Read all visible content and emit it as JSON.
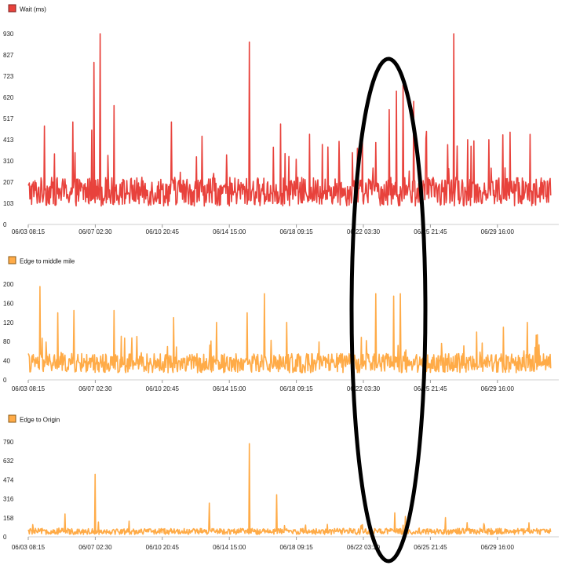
{
  "chart_data": [
    {
      "type": "line",
      "title": "",
      "legend": "Wait (ms)",
      "color": "#e8423c",
      "ylim": [
        0,
        930
      ],
      "yticks": [
        "930",
        "827",
        "723",
        "620",
        "517",
        "413",
        "310",
        "207",
        "103",
        "0"
      ],
      "xticks": [
        "06/03 08:15",
        "06/07 02:30",
        "06/10 20:45",
        "06/14 15:00",
        "06/18 09:15",
        "06/22 03:30",
        "06/25 21:45",
        "06/29 16:00"
      ],
      "xrange": [
        "06/03 08:15",
        "07/02 16:00"
      ],
      "baseline": 160,
      "noise": 70,
      "spike_prob": 0.05,
      "spike_max": 280,
      "peaks": [
        {
          "x": "06/04 06:00",
          "y": 480
        },
        {
          "x": "06/05 20:00",
          "y": 500
        },
        {
          "x": "06/06 22:00",
          "y": 460
        },
        {
          "x": "06/07 01:00",
          "y": 790
        },
        {
          "x": "06/07 09:00",
          "y": 930
        },
        {
          "x": "06/08 04:00",
          "y": 580
        },
        {
          "x": "06/11 09:00",
          "y": 500
        },
        {
          "x": "06/13 02:00",
          "y": 430
        },
        {
          "x": "06/15 18:00",
          "y": 890
        },
        {
          "x": "06/17 12:00",
          "y": 490
        },
        {
          "x": "06/19 03:00",
          "y": 440
        },
        {
          "x": "06/22 20:00",
          "y": 400
        },
        {
          "x": "06/23 14:00",
          "y": 560
        },
        {
          "x": "06/24 00:00",
          "y": 650
        },
        {
          "x": "06/24 09:00",
          "y": 680
        },
        {
          "x": "06/24 23:00",
          "y": 600
        },
        {
          "x": "06/25 16:00",
          "y": 420
        },
        {
          "x": "06/27 05:00",
          "y": 930
        },
        {
          "x": "06/30 09:00",
          "y": 450
        }
      ]
    },
    {
      "type": "line",
      "title": "",
      "legend": "Edge to middle mile",
      "color": "#ffab47",
      "ylim": [
        0,
        200
      ],
      "yticks": [
        "200",
        "160",
        "120",
        "80",
        "40",
        "0"
      ],
      "xticks": [
        "06/03 08:15",
        "06/07 02:30",
        "06/10 20:45",
        "06/14 15:00",
        "06/18 09:15",
        "06/22 03:30",
        "06/25 21:45",
        "06/29 16:00"
      ],
      "xrange": [
        "06/03 08:15",
        "07/02 16:00"
      ],
      "baseline": 35,
      "noise": 20,
      "spike_prob": 0.05,
      "spike_max": 60,
      "peaks": [
        {
          "x": "06/04 00:00",
          "y": 195
        },
        {
          "x": "06/05 00:00",
          "y": 140
        },
        {
          "x": "06/05 22:00",
          "y": 145
        },
        {
          "x": "06/08 04:00",
          "y": 145
        },
        {
          "x": "06/11 12:00",
          "y": 130
        },
        {
          "x": "06/13 22:00",
          "y": 120
        },
        {
          "x": "06/15 15:00",
          "y": 140
        },
        {
          "x": "06/16 14:00",
          "y": 180
        },
        {
          "x": "06/17 20:00",
          "y": 120
        },
        {
          "x": "06/21 12:00",
          "y": 100
        },
        {
          "x": "06/22 20:00",
          "y": 180
        },
        {
          "x": "06/23 20:00",
          "y": 175
        },
        {
          "x": "06/24 05:00",
          "y": 180
        },
        {
          "x": "06/28 12:00",
          "y": 100
        },
        {
          "x": "06/30 00:00",
          "y": 110
        },
        {
          "x": "07/01 08:00",
          "y": 120
        }
      ]
    },
    {
      "type": "line",
      "title": "",
      "legend": "Edge to Origin",
      "color": "#ffab47",
      "ylim": [
        0,
        790
      ],
      "yticks": [
        "790",
        "632",
        "474",
        "316",
        "158",
        "0"
      ],
      "xticks": [
        "06/03 08:15",
        "06/07 02:30",
        "06/10 20:45",
        "06/14 15:00",
        "06/18 09:15",
        "06/22 03:30",
        "06/25 21:45",
        "06/29 16:00"
      ],
      "xrange": [
        "06/03 08:15",
        "07/02 16:00"
      ],
      "baseline": 45,
      "noise": 25,
      "spike_prob": 0.03,
      "spike_max": 80,
      "peaks": [
        {
          "x": "06/05 10:00",
          "y": 190
        },
        {
          "x": "06/07 02:30",
          "y": 520
        },
        {
          "x": "06/09 00:00",
          "y": 130
        },
        {
          "x": "06/13 12:00",
          "y": 280
        },
        {
          "x": "06/15 18:00",
          "y": 775
        },
        {
          "x": "06/17 07:00",
          "y": 350
        },
        {
          "x": "06/23 22:00",
          "y": 200
        },
        {
          "x": "06/24 12:00",
          "y": 170
        },
        {
          "x": "06/26 18:00",
          "y": 160
        }
      ]
    }
  ],
  "colors": {
    "annotation": "#000000"
  },
  "annotation_shape": "ellipse"
}
